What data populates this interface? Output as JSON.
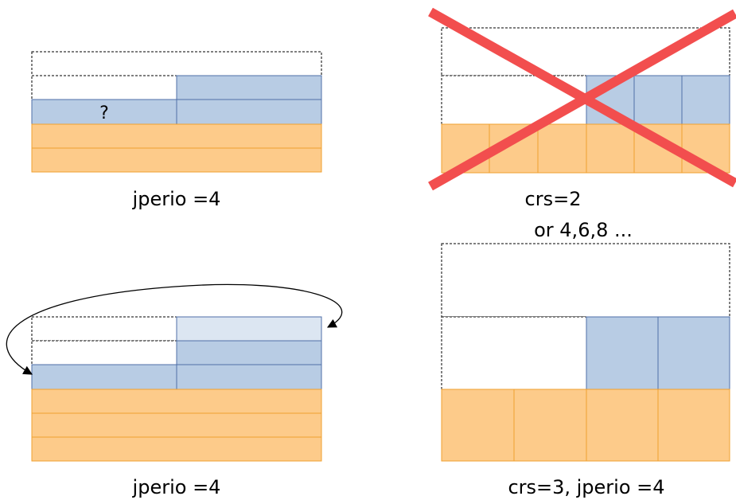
{
  "colors": {
    "blue_fill": "#b8cce4",
    "blue_light_fill": "#dce6f2",
    "blue_stroke": "#4f6fa8",
    "orange_fill": "#fdcb8a",
    "orange_stroke": "#f0a030",
    "dashed_stroke": "#000000",
    "cross": "#f24e4e"
  },
  "panels": {
    "top_left": {
      "question_mark": "?",
      "caption": "jperio =4"
    },
    "top_right": {
      "caption_line1": "crs=2",
      "caption_line2": "or 4,6,8 ..."
    },
    "bottom_left": {
      "caption": "jperio =4"
    },
    "bottom_right": {
      "caption": "crs=3, jperio =4"
    }
  }
}
